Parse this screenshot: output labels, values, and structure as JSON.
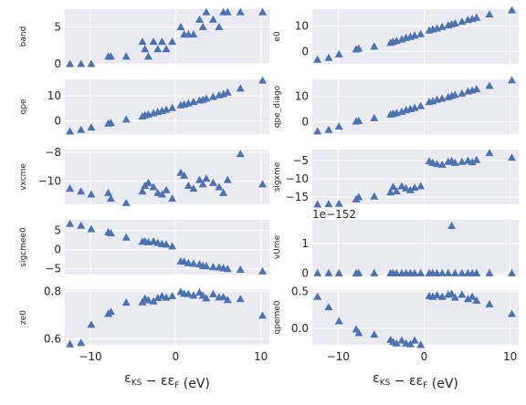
{
  "chart_data": {
    "type": "scatter",
    "marker": "triangle",
    "marker_color": "#4c72b0",
    "background_color": "#eaeaf2",
    "grid_color": "#ffffff",
    "grid": true,
    "layout": "5 rows x 2 columns, shared x axis",
    "x_label": {
      "main": "ε",
      "sub1": "KS",
      "mid": " − ε",
      "sub2": "F",
      "tail": " (eV)"
    },
    "x_ticks": [
      "−10",
      "0",
      "10"
    ],
    "x_tick_values": [
      -10,
      0,
      10
    ],
    "xlim": [
      -13,
      11
    ],
    "x": [
      -12.4,
      -11.1,
      -9.9,
      -7.9,
      -7.6,
      -5.8,
      -3.9,
      -3.6,
      -3.2,
      -2.6,
      -2.1,
      -1.6,
      -1.1,
      -0.4,
      0.6,
      1.0,
      1.5,
      2.1,
      2.8,
      3.2,
      3.6,
      4.4,
      5.1,
      5.6,
      6.1,
      7.6,
      10.2
    ],
    "panels": [
      {
        "name": "band",
        "ylabel": "band",
        "ylim": [
          0,
          7.4
        ],
        "yticks": [
          0,
          5
        ],
        "y_tick_labels": [
          "0",
          "5"
        ],
        "y": [
          0,
          0,
          0,
          1,
          1,
          1,
          3,
          2,
          1,
          3,
          2,
          3,
          2,
          3,
          5,
          4,
          4,
          4,
          6,
          5,
          7,
          6,
          5,
          7,
          7,
          7,
          7
        ]
      },
      {
        "name": "e0",
        "ylabel": "e0",
        "ylim": [
          -4.8,
          16.6
        ],
        "yticks": [
          0,
          10
        ],
        "y_tick_labels": [
          "0",
          "10"
        ],
        "y": [
          -3.1,
          -2.4,
          -1.0,
          0.9,
          1.2,
          2.0,
          3.5,
          3.9,
          4.2,
          4.8,
          5.4,
          5.8,
          6.3,
          6.9,
          8.3,
          8.7,
          9.1,
          9.7,
          10.3,
          10.7,
          11.1,
          11.7,
          12.4,
          12.8,
          13.3,
          14.6,
          16.2
        ]
      },
      {
        "name": "qpe",
        "ylabel": "qpe",
        "ylim": [
          -5.3,
          16.6
        ],
        "yticks": [
          0,
          10
        ],
        "y_tick_labels": [
          "0",
          "10"
        ],
        "y": [
          -4.2,
          -3.5,
          -2.6,
          -1.0,
          -0.8,
          0.6,
          1.8,
          2.3,
          2.6,
          3.1,
          3.6,
          4.0,
          4.5,
          5.2,
          6.3,
          6.6,
          7.0,
          7.6,
          8.2,
          8.5,
          9.0,
          9.6,
          10.3,
          10.7,
          11.4,
          13.0,
          16.2
        ]
      },
      {
        "name": "qpe_diago",
        "ylabel": "qpe_diago",
        "ylim": [
          -4.8,
          16.6
        ],
        "yticks": [
          0,
          10
        ],
        "y_tick_labels": [
          "0",
          "10"
        ],
        "y": [
          -3.7,
          -3.1,
          -1.8,
          0.2,
          0.4,
          1.5,
          2.9,
          3.2,
          3.5,
          4.0,
          4.6,
          5.0,
          5.5,
          6.2,
          7.8,
          8.1,
          8.7,
          9.1,
          9.7,
          10.2,
          10.6,
          11.1,
          11.9,
          12.3,
          12.8,
          14.1,
          16.3
        ]
      },
      {
        "name": "vxcme",
        "ylabel": "vxcme",
        "ylim": [
          -11.6,
          -7.8
        ],
        "yticks": [
          -10,
          -8
        ],
        "y_tick_labels": [
          "−10",
          "−8"
        ],
        "y": [
          -10.5,
          -10.7,
          -10.9,
          -10.8,
          -11.2,
          -11.5,
          -10.7,
          -10.3,
          -10.1,
          -10.4,
          -10.8,
          -10.9,
          -10.6,
          -11.2,
          -9.4,
          -9.6,
          -10.3,
          -10.5,
          -9.9,
          -10.2,
          -9.8,
          -10.1,
          -10.4,
          -10.8,
          -9.9,
          -8.1,
          -10.2
        ]
      },
      {
        "name": "sigxme",
        "ylabel": "sigxme",
        "ylim": [
          -17.0,
          -2.0
        ],
        "yticks": [
          -15,
          -10,
          -5
        ],
        "y_tick_labels": [
          "−15",
          "−10",
          "−5"
        ],
        "y": [
          -17.0,
          -16.9,
          -16.8,
          -15.6,
          -15.0,
          -14.8,
          -13.7,
          -12.2,
          -13.4,
          -12.0,
          -12.6,
          -13.1,
          -12.4,
          -12.0,
          -5.2,
          -5.6,
          -5.9,
          -6.1,
          -5.3,
          -5.1,
          -5.6,
          -5.3,
          -5.0,
          -5.4,
          -4.8,
          -2.9,
          -4.2
        ]
      },
      {
        "name": "sigcmee0",
        "ylabel": "sigcmee0",
        "ylim": [
          -6.5,
          7.8
        ],
        "yticks": [
          -5,
          0,
          5
        ],
        "y_tick_labels": [
          "−5",
          "0",
          "5"
        ],
        "y": [
          6.8,
          6.3,
          5.4,
          4.6,
          4.3,
          3.2,
          2.1,
          2.2,
          2.0,
          2.2,
          1.8,
          1.5,
          1.4,
          0.9,
          -3.0,
          -3.1,
          -3.5,
          -3.6,
          -3.8,
          -4.2,
          -4.3,
          -4.5,
          -4.6,
          -4.8,
          -5.0,
          -5.2,
          -5.6
        ]
      },
      {
        "name": "vUme",
        "ylabel": "vUme",
        "ylim": [
          -0.05,
          1.8
        ],
        "yticks": [
          0,
          1
        ],
        "y_tick_labels": [
          "0",
          "1"
        ],
        "offset_text": "1e−152",
        "y": [
          0,
          0,
          0,
          0,
          0,
          0,
          0,
          0,
          0,
          0,
          0,
          0,
          0,
          0,
          0,
          0,
          0,
          0,
          0,
          1.6,
          0,
          0,
          0,
          0,
          0,
          0,
          0
        ]
      },
      {
        "name": "ze0",
        "ylabel": "ze0",
        "ylim": [
          0.575,
          0.805
        ],
        "yticks": [
          0.6,
          0.8
        ],
        "y_tick_labels": [
          "0.6",
          "0.8"
        ],
        "y": [
          0.578,
          0.583,
          0.66,
          0.706,
          0.714,
          0.753,
          0.754,
          0.77,
          0.763,
          0.758,
          0.772,
          0.78,
          0.774,
          0.78,
          0.798,
          0.79,
          0.789,
          0.783,
          0.795,
          0.782,
          0.771,
          0.788,
          0.775,
          0.776,
          0.764,
          0.768,
          0.698
        ]
      },
      {
        "name": "qpeme0",
        "ylabel": "qpeme0",
        "ylim": [
          -0.22,
          0.52
        ],
        "yticks": [
          0.0,
          0.5
        ],
        "y_tick_labels": [
          "0.0",
          "0.5"
        ],
        "y": [
          0.43,
          0.29,
          0.1,
          -0.01,
          -0.06,
          -0.08,
          -0.15,
          -0.18,
          -0.2,
          -0.16,
          -0.2,
          -0.21,
          -0.16,
          -0.22,
          0.44,
          0.43,
          0.45,
          0.43,
          0.46,
          0.47,
          0.42,
          0.46,
          0.4,
          0.43,
          0.38,
          0.33,
          0.2
        ]
      }
    ]
  }
}
